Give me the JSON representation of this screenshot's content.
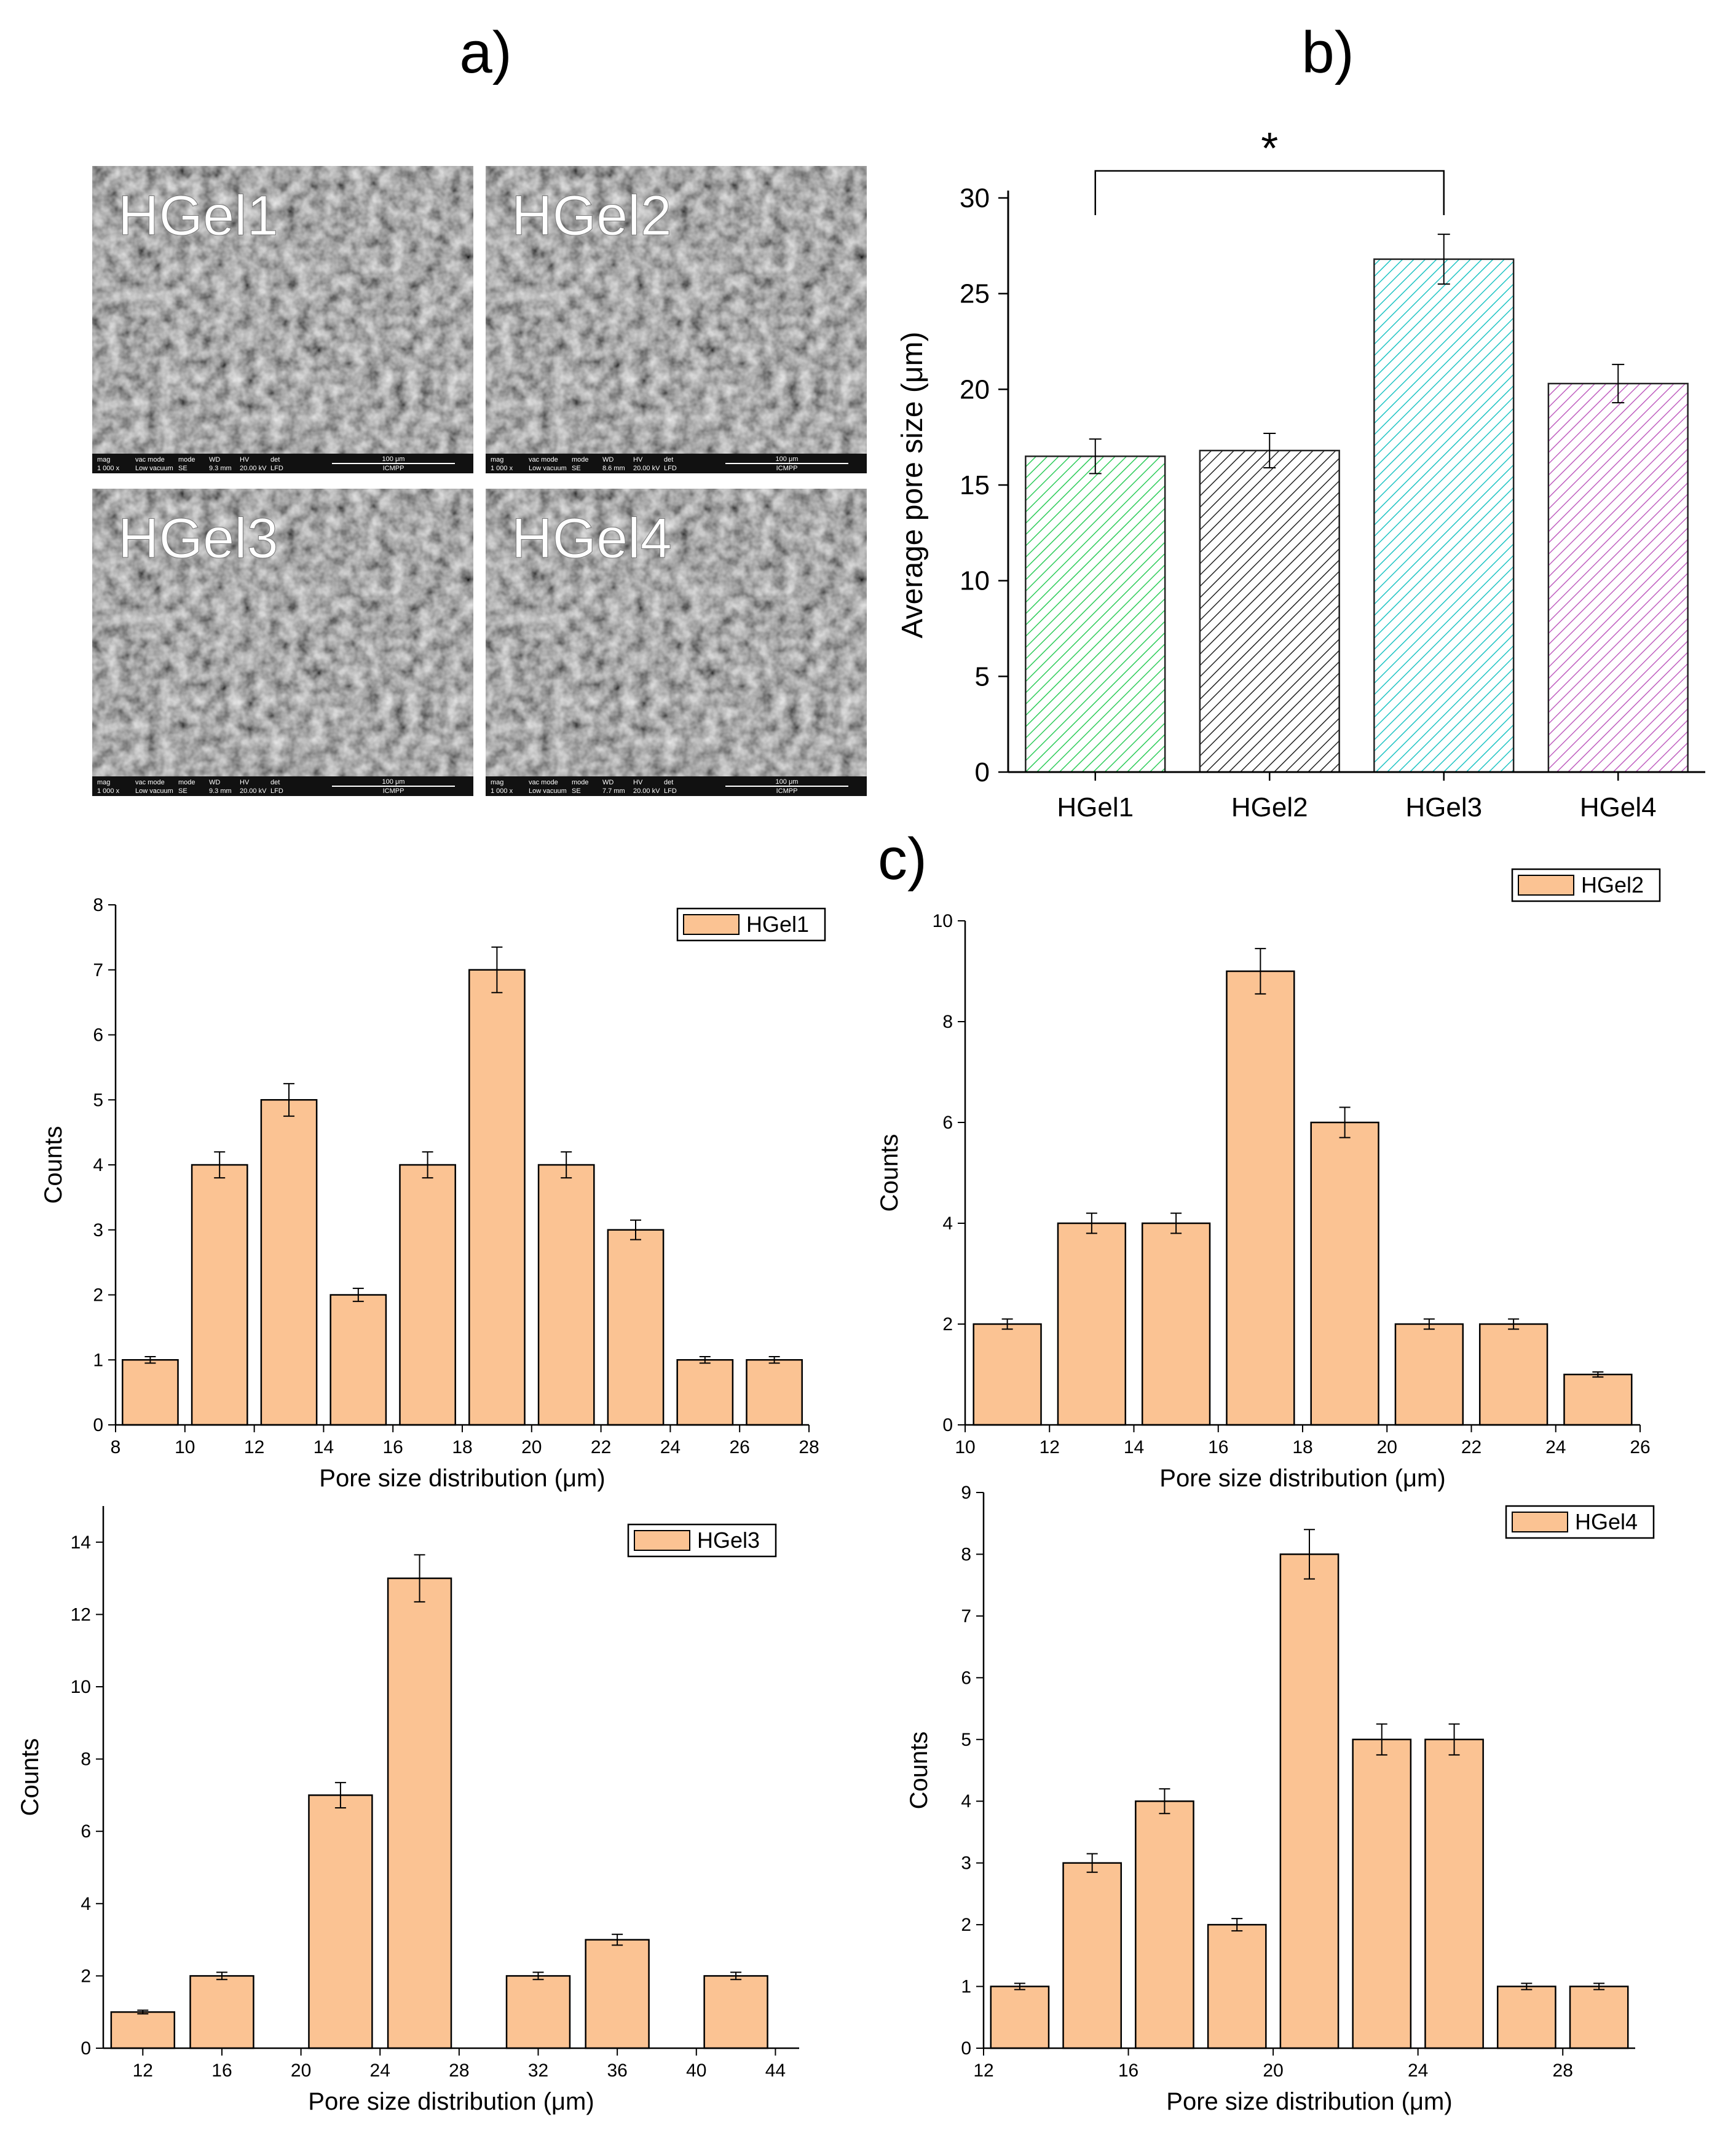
{
  "panel_labels": {
    "a": "a)",
    "b": "b)",
    "c": "c)"
  },
  "sem_panels": [
    {
      "label": "HGel1",
      "info": [
        "mag",
        "vac mode",
        "mode",
        "WD",
        "HV",
        "det"
      ],
      "info_values": [
        "1 000 x",
        "Low vacuum",
        "SE",
        "9.3 mm",
        "20.00 kV",
        "LFD"
      ],
      "scale": "100 μm",
      "lab": "ICMPP"
    },
    {
      "label": "HGel2",
      "info": [
        "mag",
        "vac mode",
        "mode",
        "WD",
        "HV",
        "det"
      ],
      "info_values": [
        "1 000 x",
        "Low vacuum",
        "SE",
        "8.6 mm",
        "20.00 kV",
        "LFD"
      ],
      "scale": "100 μm",
      "lab": "ICMPP"
    },
    {
      "label": "HGel3",
      "info": [
        "mag",
        "vac mode",
        "mode",
        "WD",
        "HV",
        "det"
      ],
      "info_values": [
        "1 000 x",
        "Low vacuum",
        "SE",
        "9.3 mm",
        "20.00 kV",
        "LFD"
      ],
      "scale": "100 μm",
      "lab": "ICMPP"
    },
    {
      "label": "HGel4",
      "info": [
        "mag",
        "vac mode",
        "mode",
        "WD",
        "HV",
        "det"
      ],
      "info_values": [
        "1 000 x",
        "Low vacuum",
        "SE",
        "7.7 mm",
        "20.00 kV",
        "LFD"
      ],
      "scale": "100 μm",
      "lab": "ICMPP"
    }
  ],
  "chart_data": [
    {
      "id": "b",
      "type": "bar",
      "categories": [
        "HGel1",
        "HGel2",
        "HGel3",
        "HGel4"
      ],
      "values": [
        16.5,
        16.8,
        26.8,
        20.3
      ],
      "errors": [
        0.9,
        0.9,
        1.3,
        1.0
      ],
      "colors": [
        "#2ecc5a",
        "#222222",
        "#20c4c4",
        "#c060c0"
      ],
      "ylabel": "Average pore size (μm)",
      "xlabel": "",
      "ylim": [
        0,
        30
      ],
      "yticks": [
        0,
        5,
        10,
        15,
        20,
        25,
        30
      ],
      "significance": {
        "from": 0,
        "to": 2,
        "label": "*"
      }
    },
    {
      "id": "c1",
      "type": "bar",
      "legend": "HGel1",
      "x": [
        9,
        11,
        13,
        15,
        17,
        19,
        21,
        23,
        25,
        27
      ],
      "values": [
        1,
        4,
        5,
        2,
        4,
        7,
        4,
        3,
        1,
        1
      ],
      "errors": [
        0.05,
        0.2,
        0.25,
        0.1,
        0.2,
        0.35,
        0.2,
        0.15,
        0.05,
        0.05
      ],
      "xlabel": "Pore size distribution (μm)",
      "ylabel": "Counts",
      "xlim": [
        8,
        28
      ],
      "xticks": [
        8,
        10,
        12,
        14,
        16,
        18,
        20,
        22,
        24,
        26,
        28
      ],
      "ylim": [
        0,
        8
      ],
      "yticks": [
        0,
        1,
        2,
        3,
        4,
        5,
        6,
        7,
        8
      ]
    },
    {
      "id": "c2",
      "type": "bar",
      "legend": "HGel2",
      "x": [
        11,
        13,
        15,
        17,
        19,
        21,
        23,
        25
      ],
      "values": [
        2,
        4,
        4,
        9,
        6,
        2,
        2,
        1
      ],
      "errors": [
        0.1,
        0.2,
        0.2,
        0.45,
        0.3,
        0.1,
        0.1,
        0.05
      ],
      "xlabel": "Pore size distribution (μm)",
      "ylabel": "Counts",
      "xlim": [
        10,
        26
      ],
      "xticks": [
        10,
        12,
        14,
        16,
        18,
        20,
        22,
        24,
        26
      ],
      "ylim": [
        0,
        10
      ],
      "yticks": [
        0,
        2,
        4,
        6,
        8,
        10
      ]
    },
    {
      "id": "c3",
      "type": "bar",
      "legend": "HGel3",
      "x": [
        12,
        16,
        22,
        26,
        32,
        36,
        42
      ],
      "values": [
        1,
        2,
        7,
        13,
        2,
        3,
        2
      ],
      "errors": [
        0.05,
        0.1,
        0.35,
        0.65,
        0.1,
        0.15,
        0.1
      ],
      "xlabel": "Pore size distribution (μm)",
      "ylabel": "Counts",
      "xlim": [
        10,
        45.2
      ],
      "xticks": [
        12,
        16,
        20,
        24,
        28,
        32,
        36,
        40,
        44
      ],
      "ylim": [
        0,
        15
      ],
      "yticks": [
        0,
        2,
        4,
        6,
        8,
        10,
        12,
        14
      ],
      "bar_width": 3.2
    },
    {
      "id": "c4",
      "type": "bar",
      "legend": "HGel4",
      "x": [
        13,
        15,
        17,
        19,
        21,
        23,
        25,
        27,
        29
      ],
      "values": [
        1,
        3,
        4,
        2,
        8,
        5,
        5,
        1,
        1
      ],
      "errors": [
        0.05,
        0.15,
        0.2,
        0.1,
        0.4,
        0.25,
        0.25,
        0.05,
        0.05
      ],
      "xlabel": "Pore size distribution (μm)",
      "ylabel": "Counts",
      "xlim": [
        12,
        30
      ],
      "xticks": [
        12,
        16,
        20,
        24,
        28
      ],
      "ylim": [
        0,
        9
      ],
      "yticks": [
        0,
        1,
        2,
        3,
        4,
        5,
        6,
        7,
        8,
        9
      ]
    }
  ]
}
